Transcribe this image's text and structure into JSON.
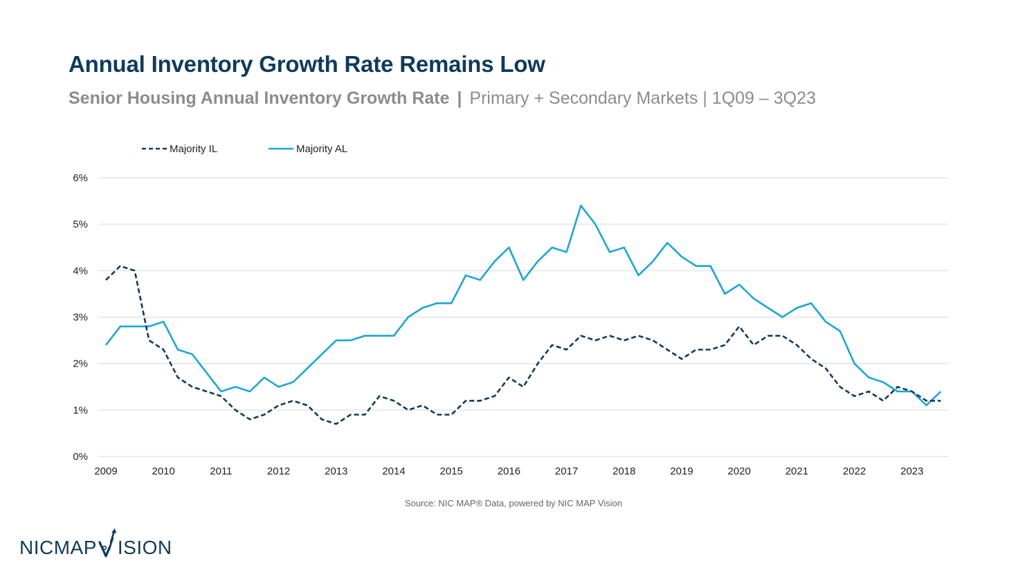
{
  "header": {
    "title": "Annual Inventory Growth Rate Remains Low",
    "subtitle_bold": "Senior Housing Annual Inventory Growth Rate",
    "subtitle_sep1": "|",
    "subtitle_part2": "Primary + Secondary Markets",
    "subtitle_sep2": "|",
    "subtitle_part3": "1Q09 – 3Q23"
  },
  "footer": {
    "source": "Source: NIC MAP® Data, powered by NIC MAP Vision",
    "logo_left": "NICMAP",
    "logo_right": "ISION"
  },
  "colors": {
    "title": "#0e3b5c",
    "il": "#0e3b5c",
    "al": "#1aa7d4",
    "grid": "#d9d9d9"
  },
  "chart_data": {
    "type": "line",
    "x_labels": [
      "2009",
      "2010",
      "2011",
      "2012",
      "2013",
      "2014",
      "2015",
      "2016",
      "2017",
      "2018",
      "2019",
      "2020",
      "2021",
      "2022",
      "2023"
    ],
    "y_ticks": [
      "0%",
      "1%",
      "2%",
      "3%",
      "4%",
      "5%",
      "6%"
    ],
    "ylim": [
      0,
      6
    ],
    "y_unit": "%",
    "grid": true,
    "legend_position": "top-left",
    "x_start": "1Q09",
    "x_end": "3Q23",
    "series": [
      {
        "name": "Majority IL",
        "style": "dashed",
        "color": "#0e3b5c",
        "values": [
          3.8,
          4.1,
          4.0,
          2.5,
          2.3,
          1.7,
          1.5,
          1.4,
          1.3,
          1.0,
          0.8,
          0.9,
          1.1,
          1.2,
          1.1,
          0.8,
          0.7,
          0.9,
          0.9,
          1.3,
          1.2,
          1.0,
          1.1,
          0.9,
          0.9,
          1.2,
          1.2,
          1.3,
          1.7,
          1.5,
          2.0,
          2.4,
          2.3,
          2.6,
          2.5,
          2.6,
          2.5,
          2.6,
          2.5,
          2.3,
          2.1,
          2.3,
          2.3,
          2.4,
          2.8,
          2.4,
          2.6,
          2.6,
          2.4,
          2.1,
          1.9,
          1.5,
          1.3,
          1.4,
          1.2,
          1.5,
          1.4,
          1.2,
          1.2
        ]
      },
      {
        "name": "Majority AL",
        "style": "solid",
        "color": "#1aa7d4",
        "values": [
          2.4,
          2.8,
          2.8,
          2.8,
          2.9,
          2.3,
          2.2,
          1.8,
          1.4,
          1.5,
          1.4,
          1.7,
          1.5,
          1.6,
          1.9,
          2.2,
          2.5,
          2.5,
          2.6,
          2.6,
          2.6,
          3.0,
          3.2,
          3.3,
          3.3,
          3.9,
          3.8,
          4.2,
          4.5,
          3.8,
          4.2,
          4.5,
          4.4,
          5.4,
          5.0,
          4.4,
          4.5,
          3.9,
          4.2,
          4.6,
          4.3,
          4.1,
          4.1,
          3.5,
          3.7,
          3.4,
          3.2,
          3.0,
          3.2,
          3.3,
          2.9,
          2.7,
          2.0,
          1.7,
          1.6,
          1.4,
          1.4,
          1.1,
          1.4
        ]
      }
    ]
  }
}
